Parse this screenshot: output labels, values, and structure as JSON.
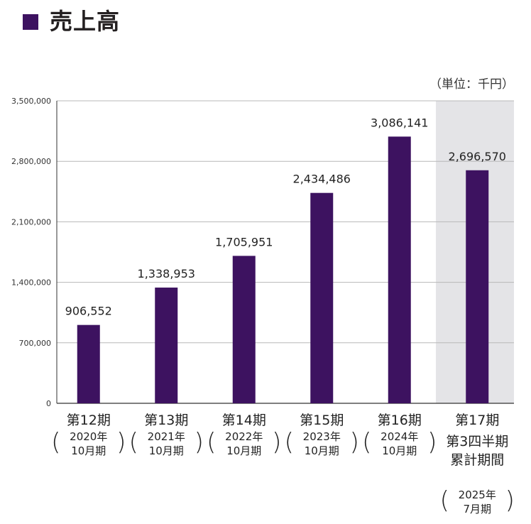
{
  "title": "売上高",
  "unit_label": "（単位：千円）",
  "colors": {
    "bar": "#3d1260",
    "highlight_bg": "#e4e4e7",
    "grid": "#b8b8b8"
  },
  "chart_data": {
    "type": "bar",
    "title": "売上高",
    "xlabel": "",
    "ylabel": "",
    "ylim": [
      0,
      3500000
    ],
    "yticks": [
      0,
      700000,
      1400000,
      2100000,
      2800000,
      3500000
    ],
    "ytick_labels": [
      "0",
      "700,000",
      "1,400,000",
      "2,100,000",
      "2,800,000",
      "3,500,000"
    ],
    "grid": true,
    "highlighted_category": 5,
    "categories": [
      {
        "label": "第12期",
        "sub": [
          "2020年",
          "10月期"
        ]
      },
      {
        "label": "第13期",
        "sub": [
          "2021年",
          "10月期"
        ]
      },
      {
        "label": "第14期",
        "sub": [
          "2022年",
          "10月期"
        ]
      },
      {
        "label": "第15期",
        "sub": [
          "2023年",
          "10月期"
        ]
      },
      {
        "label": "第16期",
        "sub": [
          "2024年",
          "10月期"
        ]
      },
      {
        "label": "第17期",
        "extra": [
          "第3四半期",
          "累計期間"
        ],
        "sub": [
          "2025年",
          "7月期"
        ]
      }
    ],
    "values": [
      906552,
      1338953,
      1705951,
      2434486,
      3086141,
      2696570
    ],
    "value_labels": [
      "906,552",
      "1,338,953",
      "1,705,951",
      "2,434,486",
      "3,086,141",
      "2,696,570"
    ]
  }
}
